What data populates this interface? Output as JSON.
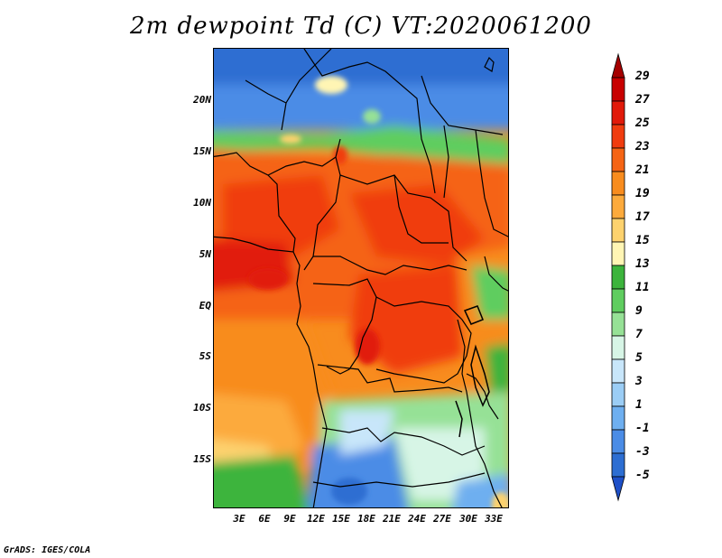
{
  "title": "2m dewpoint Td (C) VT:2020061200",
  "credit": "GrADS: IGES/COLA",
  "lat_labels": [
    "20N",
    "15N",
    "10N",
    "5N",
    "EQ",
    "5S",
    "10S",
    "15S"
  ],
  "lon_labels": [
    "3E",
    "6E",
    "9E",
    "12E",
    "15E",
    "18E",
    "21E",
    "24E",
    "27E",
    "30E",
    "33E"
  ],
  "colorbar": {
    "labels": [
      "29",
      "27",
      "25",
      "23",
      "21",
      "19",
      "17",
      "15",
      "13",
      "11",
      "9",
      "7",
      "5",
      "3",
      "1",
      "-1",
      "-3",
      "-5"
    ],
    "colors": [
      "#a50000",
      "#c80000",
      "#e11a0a",
      "#f03c0f",
      "#f56414",
      "#f88c1e",
      "#fcaa3c",
      "#fdd26e",
      "#fff5b4",
      "#3cb43c",
      "#5fcd5f",
      "#96e196",
      "#d7f5e6",
      "#c8e6fa",
      "#9bcdf5",
      "#6eaff0",
      "#4b8ce6",
      "#2d6ed2",
      "#1e50c8"
    ]
  }
}
